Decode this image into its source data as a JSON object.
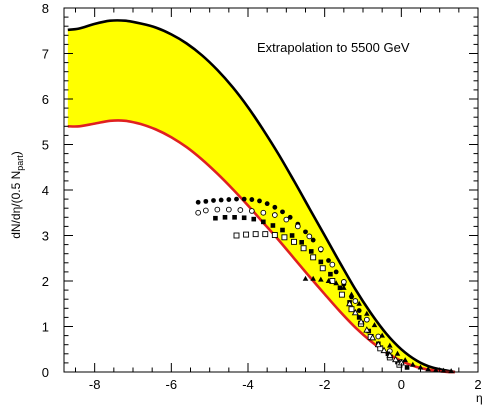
{
  "chart_data": {
    "type": "scatter",
    "title": "",
    "annotation": "Extrapolation  to 5500 GeV",
    "xlabel": "η",
    "ylabel": "dN/dη/(0.5 N",
    "ylabel_sub": "part",
    "ylabel_close": ")",
    "xlim": [
      -8.8,
      2.0
    ],
    "ylim": [
      0,
      8
    ],
    "x_ticks": [
      -8,
      -6,
      -4,
      -2,
      0,
      2
    ],
    "x_tick_labels": [
      "-8",
      "-6",
      "-4",
      "-2",
      "0",
      "2"
    ],
    "y_ticks": [
      0,
      1,
      2,
      3,
      4,
      5,
      6,
      7,
      8
    ],
    "y_tick_labels": [
      "0",
      "1",
      "2",
      "3",
      "4",
      "5",
      "6",
      "7",
      "8"
    ],
    "grid": false,
    "band": {
      "fill": "#ffff00",
      "upper": {
        "color": "#000000",
        "points": [
          [
            -8.7,
            7.52
          ],
          [
            -8.4,
            7.55
          ],
          [
            -8.0,
            7.65
          ],
          [
            -7.6,
            7.72
          ],
          [
            -7.2,
            7.72
          ],
          [
            -6.8,
            7.66
          ],
          [
            -6.4,
            7.57
          ],
          [
            -6.0,
            7.42
          ],
          [
            -5.6,
            7.22
          ],
          [
            -5.2,
            6.96
          ],
          [
            -4.8,
            6.64
          ],
          [
            -4.4,
            6.26
          ],
          [
            -4.0,
            5.82
          ],
          [
            -3.6,
            5.32
          ],
          [
            -3.2,
            4.78
          ],
          [
            -2.8,
            4.2
          ],
          [
            -2.4,
            3.6
          ],
          [
            -2.0,
            3.0
          ],
          [
            -1.6,
            2.4
          ],
          [
            -1.2,
            1.82
          ],
          [
            -0.8,
            1.3
          ],
          [
            -0.4,
            0.85
          ],
          [
            0.0,
            0.5
          ],
          [
            0.4,
            0.25
          ],
          [
            0.8,
            0.1
          ],
          [
            1.2,
            0.03
          ],
          [
            1.4,
            0.0
          ]
        ]
      },
      "lower": {
        "color": "#e02020",
        "points": [
          [
            -8.7,
            5.4
          ],
          [
            -8.4,
            5.4
          ],
          [
            -8.0,
            5.46
          ],
          [
            -7.6,
            5.52
          ],
          [
            -7.2,
            5.52
          ],
          [
            -6.8,
            5.45
          ],
          [
            -6.4,
            5.33
          ],
          [
            -6.0,
            5.16
          ],
          [
            -5.6,
            4.94
          ],
          [
            -5.2,
            4.67
          ],
          [
            -4.8,
            4.36
          ],
          [
            -4.4,
            4.02
          ],
          [
            -4.0,
            3.66
          ],
          [
            -3.6,
            3.28
          ],
          [
            -3.2,
            2.9
          ],
          [
            -2.8,
            2.5
          ],
          [
            -2.4,
            2.1
          ],
          [
            -2.0,
            1.71
          ],
          [
            -1.6,
            1.33
          ],
          [
            -1.2,
            0.98
          ],
          [
            -0.8,
            0.68
          ],
          [
            -0.4,
            0.43
          ],
          [
            0.0,
            0.24
          ],
          [
            0.4,
            0.11
          ],
          [
            0.8,
            0.04
          ],
          [
            1.2,
            0.0
          ],
          [
            1.4,
            0.0
          ]
        ]
      }
    },
    "series": [
      {
        "marker": "filled-circle",
        "points": [
          [
            -5.3,
            3.73
          ],
          [
            -5.1,
            3.75
          ],
          [
            -4.9,
            3.77
          ],
          [
            -4.7,
            3.78
          ],
          [
            -4.5,
            3.79
          ],
          [
            -4.3,
            3.8
          ],
          [
            -4.1,
            3.8
          ],
          [
            -3.9,
            3.79
          ],
          [
            -3.7,
            3.76
          ],
          [
            -3.5,
            3.7
          ],
          [
            -3.3,
            3.62
          ],
          [
            -3.1,
            3.52
          ],
          [
            -2.9,
            3.4
          ],
          [
            -2.7,
            3.25
          ],
          [
            -2.5,
            3.08
          ],
          [
            -2.3,
            2.9
          ],
          [
            -2.1,
            2.68
          ],
          [
            -1.9,
            2.45
          ],
          [
            -1.7,
            2.2
          ],
          [
            -1.5,
            1.93
          ],
          [
            -1.3,
            1.65
          ],
          [
            -1.1,
            1.35
          ]
        ]
      },
      {
        "marker": "open-circle",
        "points": [
          [
            -5.3,
            3.5
          ],
          [
            -5.1,
            3.55
          ],
          [
            -4.8,
            3.57
          ],
          [
            -4.5,
            3.57
          ],
          [
            -4.2,
            3.56
          ],
          [
            -3.9,
            3.54
          ],
          [
            -3.6,
            3.5
          ],
          [
            -3.3,
            3.45
          ],
          [
            -3.0,
            3.35
          ],
          [
            -2.7,
            3.2
          ],
          [
            -2.4,
            2.98
          ],
          [
            -2.1,
            2.7
          ],
          [
            -1.8,
            2.36
          ],
          [
            -1.5,
            1.98
          ],
          [
            -1.2,
            1.56
          ],
          [
            -0.9,
            1.15
          ],
          [
            -0.6,
            0.78
          ],
          [
            -0.3,
            0.46
          ],
          [
            0.0,
            0.22
          ]
        ]
      },
      {
        "marker": "filled-square",
        "points": [
          [
            -4.85,
            3.38
          ],
          [
            -4.6,
            3.4
          ],
          [
            -4.35,
            3.4
          ],
          [
            -4.1,
            3.39
          ],
          [
            -3.85,
            3.36
          ],
          [
            -3.6,
            3.3
          ],
          [
            -3.35,
            3.22
          ],
          [
            -3.1,
            3.12
          ],
          [
            -2.85,
            3.0
          ],
          [
            -2.6,
            2.85
          ],
          [
            -2.35,
            2.65
          ],
          [
            -2.1,
            2.42
          ],
          [
            -1.85,
            2.15
          ],
          [
            -1.6,
            1.85
          ],
          [
            -1.35,
            1.53
          ],
          [
            -1.1,
            1.2
          ],
          [
            -0.85,
            0.9
          ],
          [
            -0.6,
            0.62
          ],
          [
            -0.35,
            0.4
          ],
          [
            -0.1,
            0.22
          ],
          [
            0.15,
            0.1
          ]
        ]
      },
      {
        "marker": "open-square",
        "points": [
          [
            -4.3,
            3.0
          ],
          [
            -4.05,
            3.02
          ],
          [
            -3.8,
            3.03
          ],
          [
            -3.55,
            3.03
          ],
          [
            -3.3,
            3.01
          ],
          [
            -3.05,
            2.96
          ],
          [
            -2.8,
            2.86
          ],
          [
            -2.55,
            2.72
          ],
          [
            -2.3,
            2.52
          ],
          [
            -2.05,
            2.28
          ],
          [
            -1.8,
            2.0
          ],
          [
            -1.55,
            1.7
          ],
          [
            -1.3,
            1.38
          ],
          [
            -1.05,
            1.06
          ],
          [
            -0.8,
            0.77
          ],
          [
            -0.55,
            0.52
          ],
          [
            -0.3,
            0.32
          ],
          [
            -0.05,
            0.16
          ]
        ]
      },
      {
        "marker": "filled-triangle",
        "points": [
          [
            -2.5,
            2.05
          ],
          [
            -2.3,
            2.05
          ],
          [
            -2.1,
            2.03
          ],
          [
            -1.9,
            2.0
          ],
          [
            -1.7,
            1.95
          ],
          [
            -1.5,
            1.85
          ],
          [
            -1.3,
            1.7
          ],
          [
            -1.1,
            1.5
          ],
          [
            -0.9,
            1.28
          ],
          [
            -0.7,
            1.03
          ],
          [
            -0.5,
            0.8
          ],
          [
            -0.3,
            0.58
          ],
          [
            -0.1,
            0.4
          ],
          [
            0.1,
            0.26
          ],
          [
            0.3,
            0.16
          ],
          [
            0.5,
            0.1
          ],
          [
            0.7,
            0.06
          ],
          [
            0.9,
            0.04
          ],
          [
            1.1,
            0.03
          ],
          [
            1.3,
            0.02
          ]
        ]
      },
      {
        "marker": "open-triangle",
        "points": [
          [
            -1.35,
            1.5
          ],
          [
            -1.2,
            1.3
          ],
          [
            -1.05,
            1.1
          ],
          [
            -0.9,
            0.92
          ],
          [
            -0.75,
            0.75
          ],
          [
            -0.6,
            0.6
          ],
          [
            -0.45,
            0.47
          ],
          [
            -0.3,
            0.36
          ],
          [
            -0.15,
            0.27
          ],
          [
            0.0,
            0.2
          ]
        ]
      }
    ]
  }
}
